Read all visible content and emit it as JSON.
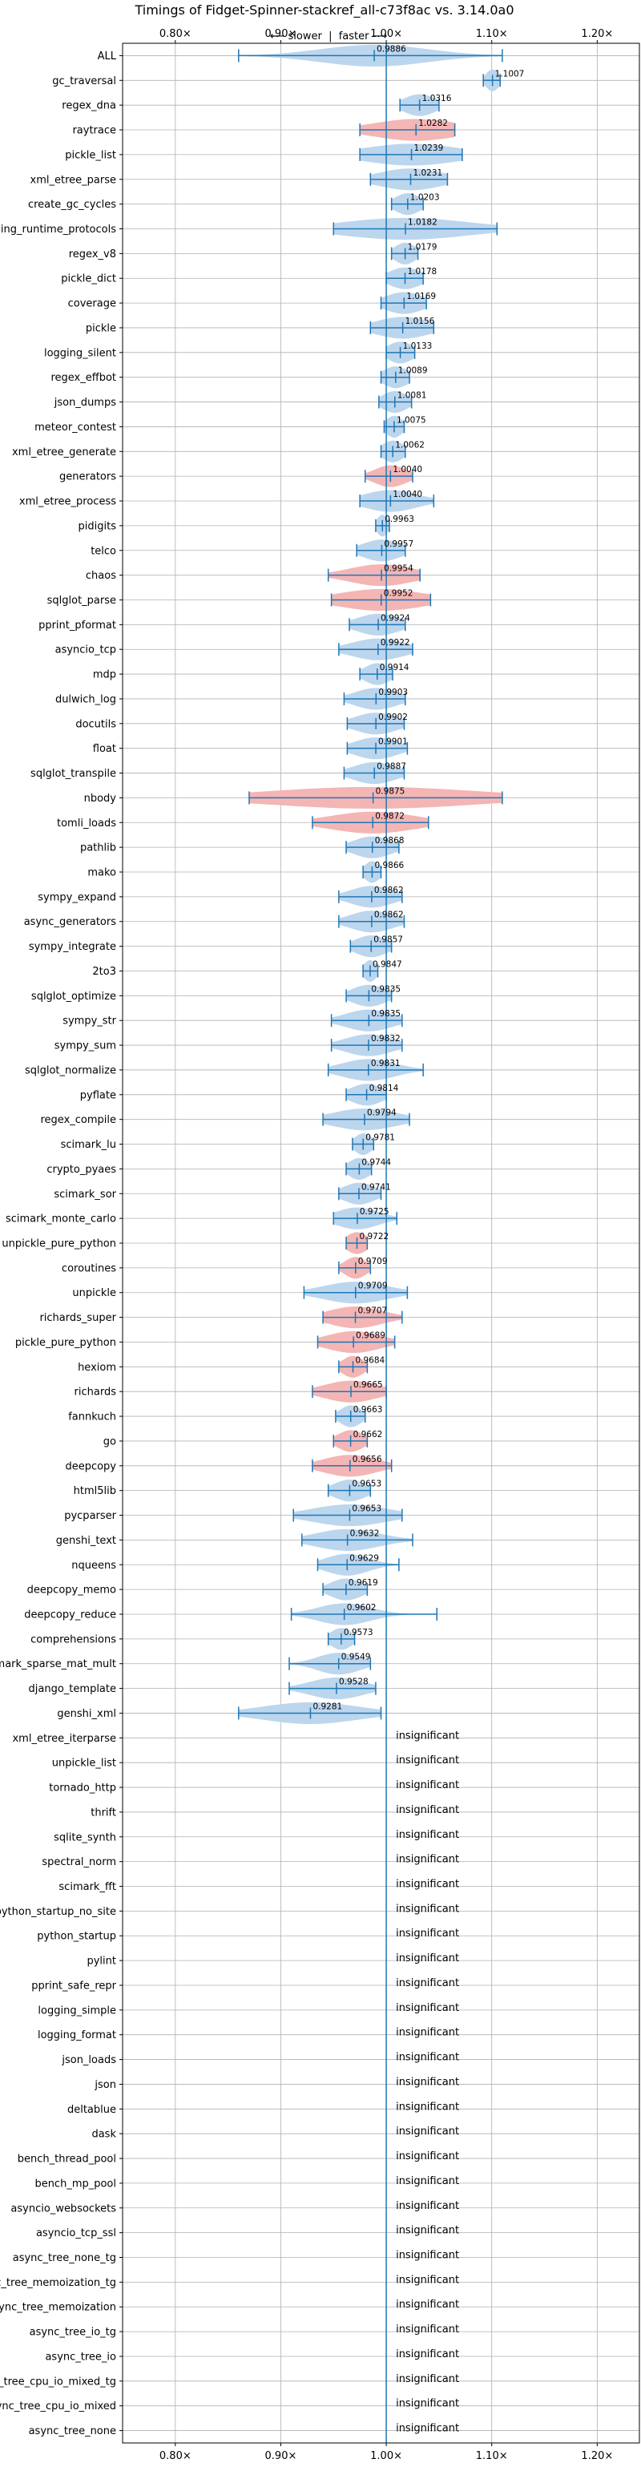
{
  "chart_data": {
    "type": "violin",
    "title": "Timings of Fidget-Spinner-stackref_all-c73f8ac vs. 3.14.0a0",
    "subtitle": "⟵ slower  |  faster ⟶",
    "xlim": [
      0.75,
      1.24
    ],
    "xticks": [
      0.8,
      0.9,
      1.0,
      1.1,
      1.2
    ],
    "xtick_labels": [
      "0.80×",
      "0.90×",
      "1.00×",
      "1.10×",
      "1.20×"
    ],
    "reference_line": 1.0,
    "grid": true,
    "colors": {
      "neutral_violin": "#bcd6ee",
      "highlight_violin": "#f4b5b5",
      "whisker": "#1f77b4",
      "grid": "#b0b0b0"
    },
    "insignificant_label": "insignificant",
    "benchmarks": [
      {
        "name": "ALL",
        "value": 0.9886,
        "label": "0.9886",
        "low": 0.86,
        "high": 1.11,
        "spread": 0.05,
        "highlight": false
      },
      {
        "name": "gc_traversal",
        "value": 1.1007,
        "label": "1.1007",
        "low": 1.092,
        "high": 1.108,
        "spread": 0.006,
        "highlight": false
      },
      {
        "name": "regex_dna",
        "value": 1.0316,
        "label": "1.0316",
        "low": 1.013,
        "high": 1.05,
        "spread": 0.015,
        "highlight": false
      },
      {
        "name": "raytrace",
        "value": 1.0282,
        "label": "1.0282",
        "low": 0.975,
        "high": 1.065,
        "spread": 0.04,
        "highlight": true
      },
      {
        "name": "pickle_list",
        "value": 1.0239,
        "label": "1.0239",
        "low": 0.975,
        "high": 1.072,
        "spread": 0.045,
        "highlight": false
      },
      {
        "name": "xml_etree_parse",
        "value": 1.0231,
        "label": "1.0231",
        "low": 0.985,
        "high": 1.058,
        "spread": 0.03,
        "highlight": false
      },
      {
        "name": "create_gc_cycles",
        "value": 1.0203,
        "label": "1.0203",
        "low": 1.005,
        "high": 1.035,
        "spread": 0.012,
        "highlight": false
      },
      {
        "name": "typing_runtime_protocols",
        "value": 1.0182,
        "label": "1.0182",
        "low": 0.95,
        "high": 1.105,
        "spread": 0.06,
        "highlight": false
      },
      {
        "name": "regex_v8",
        "value": 1.0179,
        "label": "1.0179",
        "low": 1.005,
        "high": 1.03,
        "spread": 0.01,
        "highlight": false
      },
      {
        "name": "pickle_dict",
        "value": 1.0178,
        "label": "1.0178",
        "low": 1.0,
        "high": 1.035,
        "spread": 0.015,
        "highlight": false
      },
      {
        "name": "coverage",
        "value": 1.0169,
        "label": "1.0169",
        "low": 0.995,
        "high": 1.038,
        "spread": 0.018,
        "highlight": false
      },
      {
        "name": "pickle",
        "value": 1.0156,
        "label": "1.0156",
        "low": 0.985,
        "high": 1.045,
        "spread": 0.025,
        "highlight": false
      },
      {
        "name": "logging_silent",
        "value": 1.0133,
        "label": "1.0133",
        "low": 1.0,
        "high": 1.027,
        "spread": 0.012,
        "highlight": false
      },
      {
        "name": "regex_effbot",
        "value": 1.0089,
        "label": "1.0089",
        "low": 0.995,
        "high": 1.022,
        "spread": 0.012,
        "highlight": false
      },
      {
        "name": "json_dumps",
        "value": 1.0081,
        "label": "1.0081",
        "low": 0.993,
        "high": 1.024,
        "spread": 0.012,
        "highlight": false
      },
      {
        "name": "meteor_contest",
        "value": 1.0075,
        "label": "1.0075",
        "low": 0.998,
        "high": 1.017,
        "spread": 0.008,
        "highlight": false
      },
      {
        "name": "xml_etree_generate",
        "value": 1.0062,
        "label": "1.0062",
        "low": 0.995,
        "high": 1.018,
        "spread": 0.01,
        "highlight": false
      },
      {
        "name": "generators",
        "value": 1.004,
        "label": "1.0040",
        "low": 0.98,
        "high": 1.025,
        "spread": 0.015,
        "highlight": true
      },
      {
        "name": "xml_etree_process",
        "value": 1.004,
        "label": "1.0040",
        "low": 0.975,
        "high": 1.045,
        "spread": 0.025,
        "highlight": false
      },
      {
        "name": "pidigits",
        "value": 0.9963,
        "label": "0.9963",
        "low": 0.99,
        "high": 1.003,
        "spread": 0.005,
        "highlight": false
      },
      {
        "name": "telco",
        "value": 0.9957,
        "label": "0.9957",
        "low": 0.972,
        "high": 1.018,
        "spread": 0.018,
        "highlight": false
      },
      {
        "name": "chaos",
        "value": 0.9954,
        "label": "0.9954",
        "low": 0.945,
        "high": 1.032,
        "spread": 0.03,
        "highlight": true
      },
      {
        "name": "sqlglot_parse",
        "value": 0.9952,
        "label": "0.9952",
        "low": 0.948,
        "high": 1.042,
        "spread": 0.04,
        "highlight": true
      },
      {
        "name": "pprint_pformat",
        "value": 0.9924,
        "label": "0.9924",
        "low": 0.965,
        "high": 1.018,
        "spread": 0.02,
        "highlight": false
      },
      {
        "name": "asyncio_tcp",
        "value": 0.9922,
        "label": "0.9922",
        "low": 0.955,
        "high": 1.025,
        "spread": 0.025,
        "highlight": false
      },
      {
        "name": "mdp",
        "value": 0.9914,
        "label": "0.9914",
        "low": 0.975,
        "high": 1.006,
        "spread": 0.012,
        "highlight": false
      },
      {
        "name": "dulwich_log",
        "value": 0.9903,
        "label": "0.9903",
        "low": 0.96,
        "high": 1.018,
        "spread": 0.02,
        "highlight": false
      },
      {
        "name": "docutils",
        "value": 0.9902,
        "label": "0.9902",
        "low": 0.963,
        "high": 1.017,
        "spread": 0.02,
        "highlight": false
      },
      {
        "name": "float",
        "value": 0.9901,
        "label": "0.9901",
        "low": 0.963,
        "high": 1.02,
        "spread": 0.02,
        "highlight": false
      },
      {
        "name": "sqlglot_transpile",
        "value": 0.9887,
        "label": "0.9887",
        "low": 0.96,
        "high": 1.017,
        "spread": 0.02,
        "highlight": false
      },
      {
        "name": "nbody",
        "value": 0.9875,
        "label": "0.9875",
        "low": 0.87,
        "high": 1.11,
        "spread": 0.1,
        "highlight": true
      },
      {
        "name": "tomli_loads",
        "value": 0.9872,
        "label": "0.9872",
        "low": 0.93,
        "high": 1.04,
        "spread": 0.04,
        "highlight": true
      },
      {
        "name": "pathlib",
        "value": 0.9868,
        "label": "0.9868",
        "low": 0.962,
        "high": 1.012,
        "spread": 0.018,
        "highlight": false
      },
      {
        "name": "mako",
        "value": 0.9866,
        "label": "0.9866",
        "low": 0.978,
        "high": 0.995,
        "spread": 0.007,
        "highlight": false
      },
      {
        "name": "sympy_expand",
        "value": 0.9862,
        "label": "0.9862",
        "low": 0.955,
        "high": 1.015,
        "spread": 0.02,
        "highlight": false
      },
      {
        "name": "async_generators",
        "value": 0.9862,
        "label": "0.9862",
        "low": 0.955,
        "high": 1.017,
        "spread": 0.02,
        "highlight": false
      },
      {
        "name": "sympy_integrate",
        "value": 0.9857,
        "label": "0.9857",
        "low": 0.966,
        "high": 1.005,
        "spread": 0.015,
        "highlight": false
      },
      {
        "name": "2to3",
        "value": 0.9847,
        "label": "0.9847",
        "low": 0.978,
        "high": 0.992,
        "spread": 0.006,
        "highlight": false
      },
      {
        "name": "sqlglot_optimize",
        "value": 0.9835,
        "label": "0.9835",
        "low": 0.962,
        "high": 1.005,
        "spread": 0.016,
        "highlight": false
      },
      {
        "name": "sympy_str",
        "value": 0.9835,
        "label": "0.9835",
        "low": 0.948,
        "high": 1.015,
        "spread": 0.022,
        "highlight": false
      },
      {
        "name": "sympy_sum",
        "value": 0.9832,
        "label": "0.9832",
        "low": 0.948,
        "high": 1.015,
        "spread": 0.022,
        "highlight": false
      },
      {
        "name": "sqlglot_normalize",
        "value": 0.9831,
        "label": "0.9831",
        "low": 0.945,
        "high": 1.035,
        "spread": 0.025,
        "highlight": false
      },
      {
        "name": "pyflate",
        "value": 0.9814,
        "label": "0.9814",
        "low": 0.962,
        "high": 1.0,
        "spread": 0.015,
        "highlight": false
      },
      {
        "name": "regex_compile",
        "value": 0.9794,
        "label": "0.9794",
        "low": 0.94,
        "high": 1.022,
        "spread": 0.03,
        "highlight": false
      },
      {
        "name": "scimark_lu",
        "value": 0.9781,
        "label": "0.9781",
        "low": 0.968,
        "high": 0.988,
        "spread": 0.008,
        "highlight": false
      },
      {
        "name": "crypto_pyaes",
        "value": 0.9744,
        "label": "0.9744",
        "low": 0.962,
        "high": 0.986,
        "spread": 0.01,
        "highlight": false
      },
      {
        "name": "scimark_sor",
        "value": 0.9741,
        "label": "0.9741",
        "low": 0.955,
        "high": 0.995,
        "spread": 0.015,
        "highlight": false
      },
      {
        "name": "scimark_monte_carlo",
        "value": 0.9725,
        "label": "0.9725",
        "low": 0.95,
        "high": 1.01,
        "spread": 0.02,
        "highlight": false
      },
      {
        "name": "unpickle_pure_python",
        "value": 0.9722,
        "label": "0.9722",
        "low": 0.962,
        "high": 0.982,
        "spread": 0.01,
        "highlight": true
      },
      {
        "name": "coroutines",
        "value": 0.9709,
        "label": "0.9709",
        "low": 0.955,
        "high": 0.985,
        "spread": 0.01,
        "highlight": true
      },
      {
        "name": "unpickle",
        "value": 0.9709,
        "label": "0.9709",
        "low": 0.922,
        "high": 1.02,
        "spread": 0.03,
        "highlight": false
      },
      {
        "name": "richards_super",
        "value": 0.9707,
        "label": "0.9707",
        "low": 0.94,
        "high": 1.015,
        "spread": 0.025,
        "highlight": true
      },
      {
        "name": "pickle_pure_python",
        "value": 0.9689,
        "label": "0.9689",
        "low": 0.935,
        "high": 1.008,
        "spread": 0.025,
        "highlight": true
      },
      {
        "name": "hexiom",
        "value": 0.9684,
        "label": "0.9684",
        "low": 0.955,
        "high": 0.982,
        "spread": 0.01,
        "highlight": true
      },
      {
        "name": "richards",
        "value": 0.9665,
        "label": "0.9665",
        "low": 0.93,
        "high": 1.0,
        "spread": 0.025,
        "highlight": true
      },
      {
        "name": "fannkuch",
        "value": 0.9663,
        "label": "0.9663",
        "low": 0.952,
        "high": 0.98,
        "spread": 0.01,
        "highlight": false
      },
      {
        "name": "go",
        "value": 0.9662,
        "label": "0.9662",
        "low": 0.95,
        "high": 0.982,
        "spread": 0.012,
        "highlight": true
      },
      {
        "name": "deepcopy",
        "value": 0.9656,
        "label": "0.9656",
        "low": 0.93,
        "high": 1.005,
        "spread": 0.025,
        "highlight": true
      },
      {
        "name": "html5lib",
        "value": 0.9653,
        "label": "0.9653",
        "low": 0.945,
        "high": 0.985,
        "spread": 0.015,
        "highlight": false
      },
      {
        "name": "pycparser",
        "value": 0.9653,
        "label": "0.9653",
        "low": 0.912,
        "high": 1.015,
        "spread": 0.035,
        "highlight": false
      },
      {
        "name": "genshi_text",
        "value": 0.9632,
        "label": "0.9632",
        "low": 0.92,
        "high": 1.025,
        "spread": 0.03,
        "highlight": false
      },
      {
        "name": "nqueens",
        "value": 0.9629,
        "label": "0.9629",
        "low": 0.935,
        "high": 1.012,
        "spread": 0.02,
        "highlight": false
      },
      {
        "name": "deepcopy_memo",
        "value": 0.9619,
        "label": "0.9619",
        "low": 0.94,
        "high": 0.982,
        "spread": 0.015,
        "highlight": false
      },
      {
        "name": "deepcopy_reduce",
        "value": 0.9602,
        "label": "0.9602",
        "low": 0.91,
        "high": 1.048,
        "spread": 0.025,
        "highlight": false
      },
      {
        "name": "comprehensions",
        "value": 0.9573,
        "label": "0.9573",
        "low": 0.945,
        "high": 0.97,
        "spread": 0.01,
        "highlight": false
      },
      {
        "name": "scimark_sparse_mat_mult",
        "value": 0.9549,
        "label": "0.9549",
        "low": 0.908,
        "high": 0.985,
        "spread": 0.02,
        "highlight": false
      },
      {
        "name": "django_template",
        "value": 0.9528,
        "label": "0.9528",
        "low": 0.908,
        "high": 0.99,
        "spread": 0.025,
        "highlight": false
      },
      {
        "name": "genshi_xml",
        "value": 0.9281,
        "label": "0.9281",
        "low": 0.86,
        "high": 0.995,
        "spread": 0.045,
        "highlight": false
      },
      {
        "name": "xml_etree_iterparse",
        "insignificant": true
      },
      {
        "name": "unpickle_list",
        "insignificant": true
      },
      {
        "name": "tornado_http",
        "insignificant": true
      },
      {
        "name": "thrift",
        "insignificant": true
      },
      {
        "name": "sqlite_synth",
        "insignificant": true
      },
      {
        "name": "spectral_norm",
        "insignificant": true
      },
      {
        "name": "scimark_fft",
        "insignificant": true
      },
      {
        "name": "python_startup_no_site",
        "insignificant": true
      },
      {
        "name": "python_startup",
        "insignificant": true
      },
      {
        "name": "pylint",
        "insignificant": true
      },
      {
        "name": "pprint_safe_repr",
        "insignificant": true
      },
      {
        "name": "logging_simple",
        "insignificant": true
      },
      {
        "name": "logging_format",
        "insignificant": true
      },
      {
        "name": "json_loads",
        "insignificant": true
      },
      {
        "name": "json",
        "insignificant": true
      },
      {
        "name": "deltablue",
        "insignificant": true
      },
      {
        "name": "dask",
        "insignificant": true
      },
      {
        "name": "bench_thread_pool",
        "insignificant": true
      },
      {
        "name": "bench_mp_pool",
        "insignificant": true
      },
      {
        "name": "asyncio_websockets",
        "insignificant": true
      },
      {
        "name": "asyncio_tcp_ssl",
        "insignificant": true
      },
      {
        "name": "async_tree_none_tg",
        "insignificant": true
      },
      {
        "name": "async_tree_memoization_tg",
        "insignificant": true
      },
      {
        "name": "async_tree_memoization",
        "insignificant": true
      },
      {
        "name": "async_tree_io_tg",
        "insignificant": true
      },
      {
        "name": "async_tree_io",
        "insignificant": true
      },
      {
        "name": "async_tree_cpu_io_mixed_tg",
        "insignificant": true
      },
      {
        "name": "async_tree_cpu_io_mixed",
        "insignificant": true
      },
      {
        "name": "async_tree_none",
        "insignificant": true
      }
    ]
  }
}
